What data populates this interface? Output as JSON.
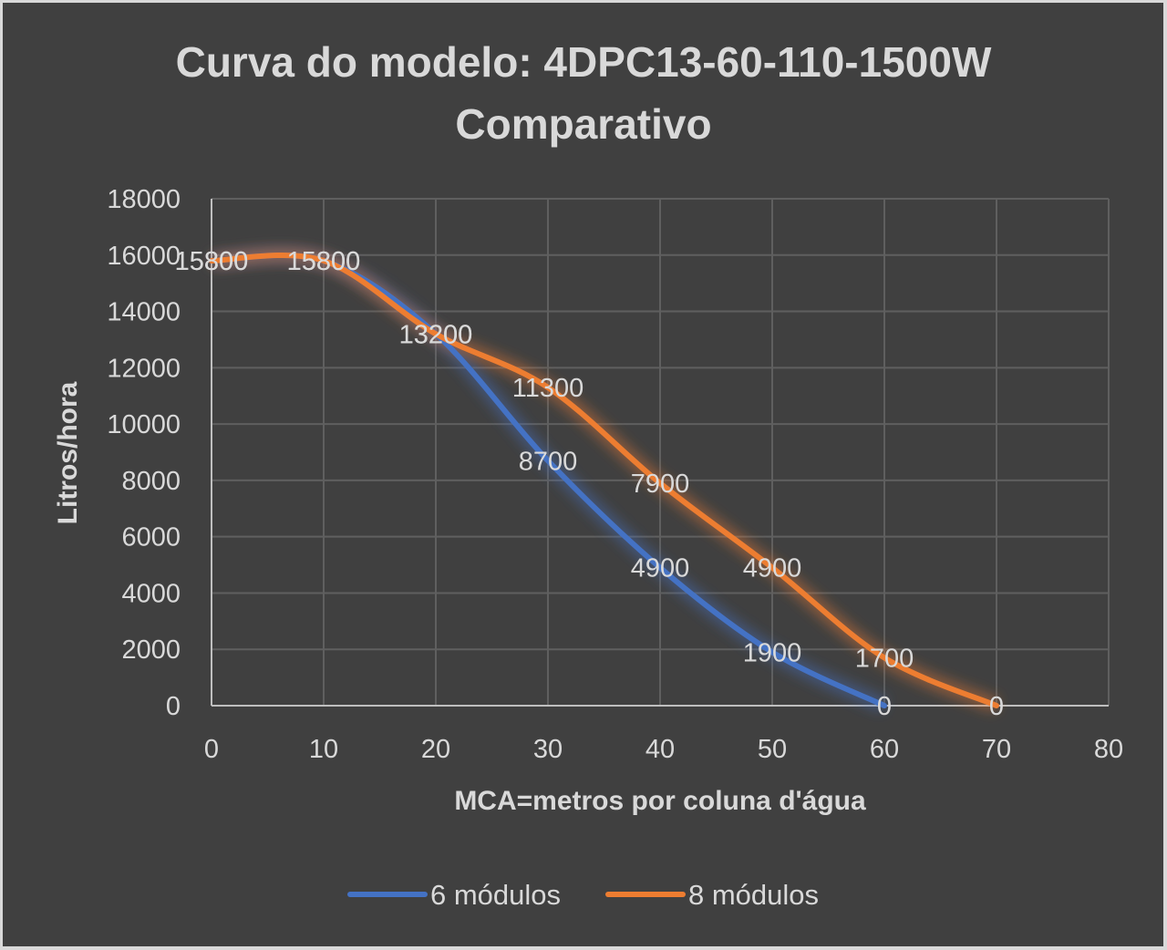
{
  "chart_data": {
    "type": "line",
    "title": "Curva do modelo: 4DPC13-60-110-1500W",
    "subtitle": "Comparativo",
    "xlabel": "MCA=metros por coluna d'água",
    "ylabel": "Litros/hora",
    "xlim": [
      0,
      80
    ],
    "ylim": [
      0,
      18000
    ],
    "x_ticks": [
      "0",
      "10",
      "20",
      "30",
      "40",
      "50",
      "60",
      "70",
      "80"
    ],
    "y_ticks": [
      "0",
      "2000",
      "4000",
      "6000",
      "8000",
      "10000",
      "12000",
      "14000",
      "16000",
      "18000"
    ],
    "grid": true,
    "legend_position": "bottom",
    "series": [
      {
        "name": "6 módulos",
        "color": "#4472c4",
        "points": [
          [
            0,
            15800
          ],
          [
            10,
            15800
          ],
          [
            20,
            13200
          ],
          [
            30,
            8700
          ],
          [
            40,
            4900
          ],
          [
            50,
            1900
          ],
          [
            60,
            0
          ]
        ],
        "labels": [
          "15800",
          "15800",
          "13200",
          "8700",
          "4900",
          "1900",
          "0"
        ]
      },
      {
        "name": "8 módulos",
        "color": "#ed7d31",
        "points": [
          [
            0,
            15800
          ],
          [
            10,
            15800
          ],
          [
            20,
            13200
          ],
          [
            30,
            11300
          ],
          [
            40,
            7900
          ],
          [
            50,
            4900
          ],
          [
            60,
            1700
          ],
          [
            70,
            0
          ]
        ],
        "labels": [
          "15800",
          "15800",
          "13200",
          "11300",
          "7900",
          "4900",
          "1700",
          "0"
        ]
      }
    ]
  }
}
